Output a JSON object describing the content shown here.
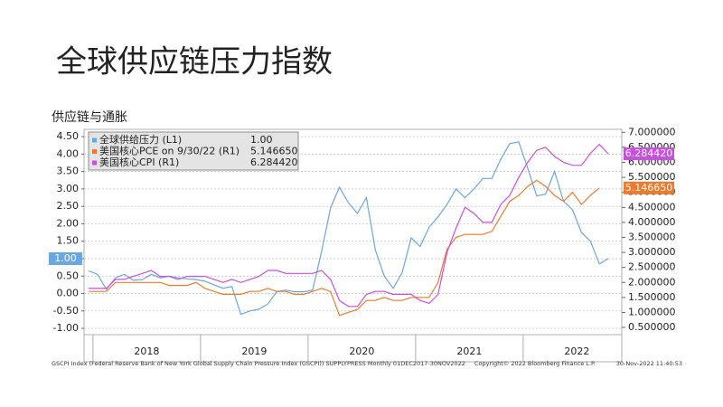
{
  "slide_title": "全球供应链压力指数",
  "chart_data": {
    "type": "line",
    "title": "供应链与通胀",
    "categories": [
      null,
      null,
      null,
      null,
      null,
      null,
      "2018",
      null,
      null,
      null,
      null,
      null,
      null,
      null,
      null,
      null,
      null,
      null,
      "2019",
      null,
      null,
      null,
      null,
      null,
      null,
      null,
      null,
      null,
      null,
      null,
      "2020",
      null,
      null,
      null,
      null,
      null,
      null,
      null,
      null,
      null,
      null,
      null,
      "2021",
      null,
      null,
      null,
      null,
      null,
      null,
      null,
      null,
      null,
      null,
      null,
      "2022",
      null,
      null,
      null,
      null,
      null
    ],
    "series": [
      {
        "name": "全球供给压力 (L1)",
        "color": "#6aa6e0",
        "axis": "y",
        "values": [
          0.65,
          0.55,
          0.12,
          0.45,
          0.55,
          0.38,
          0.4,
          0.55,
          0.45,
          0.5,
          0.45,
          0.42,
          0.4,
          0.35,
          0.25,
          0.15,
          0.2,
          -0.6,
          -0.5,
          -0.45,
          -0.3,
          0.05,
          0.1,
          0.05,
          0.05,
          0.1,
          1.2,
          2.45,
          3.05,
          2.6,
          2.3,
          2.75,
          1.25,
          0.5,
          0.15,
          0.6,
          1.6,
          1.35,
          1.9,
          2.2,
          2.55,
          3.0,
          2.75,
          3.0,
          3.3,
          3.3,
          3.85,
          4.3,
          4.35,
          3.6,
          2.8,
          2.85,
          3.5,
          2.65,
          2.4,
          1.75,
          1.5,
          0.85,
          1.0,
          null
        ],
        "value_labels": [
          null,
          null,
          null,
          null,
          null,
          null,
          null,
          null,
          null,
          null,
          null,
          null,
          null,
          null,
          null,
          null,
          null,
          null,
          null,
          null,
          null,
          null,
          null,
          null,
          null,
          null,
          null,
          null,
          null,
          null,
          null,
          null,
          null,
          null,
          null,
          null,
          null,
          null,
          null,
          null,
          null,
          null,
          null,
          null,
          null,
          null,
          null,
          null,
          null,
          null,
          null,
          null,
          null,
          null,
          null,
          null,
          null,
          null,
          "1.00",
          null
        ]
      },
      {
        "name": "美国核心PCE on 9/30/22 (R1)",
        "color": "#f07a2c",
        "axis": "y2",
        "values": [
          1.7,
          1.7,
          1.7,
          2.0,
          2.0,
          2.0,
          2.0,
          2.0,
          2.0,
          1.9,
          1.9,
          1.9,
          2.0,
          1.8,
          1.7,
          1.6,
          1.6,
          1.6,
          1.7,
          1.7,
          1.8,
          1.7,
          1.7,
          1.6,
          1.6,
          1.7,
          1.8,
          1.7,
          0.9,
          1.0,
          1.1,
          1.4,
          1.4,
          1.5,
          1.4,
          1.4,
          1.5,
          1.5,
          1.5,
          2.0,
          3.1,
          3.5,
          3.6,
          3.6,
          3.6,
          3.7,
          4.2,
          4.7,
          4.9,
          5.2,
          5.4,
          5.2,
          4.9,
          4.7,
          5.0,
          4.6,
          4.9,
          5.14665,
          null,
          null
        ],
        "value_labels": [
          null,
          null,
          null,
          null,
          null,
          null,
          null,
          null,
          null,
          null,
          null,
          null,
          null,
          null,
          null,
          null,
          null,
          null,
          null,
          null,
          null,
          null,
          null,
          null,
          null,
          null,
          null,
          null,
          null,
          null,
          null,
          null,
          null,
          null,
          null,
          null,
          null,
          null,
          null,
          null,
          null,
          null,
          null,
          null,
          null,
          null,
          null,
          null,
          null,
          null,
          null,
          null,
          null,
          null,
          null,
          null,
          null,
          "5.146650",
          null,
          null
        ]
      },
      {
        "name": "美国核心CPI (R1)",
        "color": "#c94fe0",
        "axis": "y2",
        "values": [
          1.8,
          1.8,
          1.8,
          2.1,
          2.1,
          2.2,
          2.3,
          2.4,
          2.2,
          2.2,
          2.1,
          2.2,
          2.2,
          2.2,
          2.1,
          2.0,
          2.1,
          2.0,
          2.1,
          2.2,
          2.4,
          2.4,
          2.3,
          2.3,
          2.3,
          2.3,
          2.4,
          2.1,
          1.4,
          1.2,
          1.2,
          1.6,
          1.7,
          1.7,
          1.6,
          1.6,
          1.6,
          1.4,
          1.3,
          1.6,
          3.0,
          3.8,
          4.5,
          4.3,
          4.0,
          4.0,
          4.6,
          4.9,
          5.5,
          6.0,
          6.4,
          6.5,
          6.2,
          6.0,
          5.9,
          5.9,
          6.3,
          6.6,
          6.28442,
          null
        ],
        "value_labels": [
          null,
          null,
          null,
          null,
          null,
          null,
          null,
          null,
          null,
          null,
          null,
          null,
          null,
          null,
          null,
          null,
          null,
          null,
          null,
          null,
          null,
          null,
          null,
          null,
          null,
          null,
          null,
          null,
          null,
          null,
          null,
          null,
          null,
          null,
          null,
          null,
          null,
          null,
          null,
          null,
          null,
          null,
          null,
          null,
          null,
          null,
          null,
          null,
          null,
          null,
          null,
          null,
          null,
          null,
          null,
          null,
          null,
          null,
          "6.284420",
          null
        ]
      }
    ],
    "ylim": [
      -1.18,
      4.71
    ],
    "yticks": [
      {
        "value": -1,
        "label": "-1.00"
      },
      {
        "value": -0.5,
        "label": "-0.50"
      },
      {
        "value": 0,
        "label": "0.00"
      },
      {
        "value": 0.5,
        "label": "0.50"
      },
      {
        "value": 1,
        "label": "1.00"
      },
      {
        "value": 1.5,
        "label": "1.50"
      },
      {
        "value": 2,
        "label": "2.00"
      },
      {
        "value": 2.5,
        "label": "2.50"
      },
      {
        "value": 3,
        "label": "3.00"
      },
      {
        "value": 3.5,
        "label": "3.50"
      },
      {
        "value": 4,
        "label": "4.00"
      },
      {
        "value": 4.5,
        "label": "4.50"
      }
    ],
    "y2lim": [
      0.26,
      7.1
    ],
    "y2ticks": [
      {
        "value": 0.5,
        "label": "0.500000"
      },
      {
        "value": 1,
        "label": "1.000000"
      },
      {
        "value": 1.5,
        "label": "1.500000"
      },
      {
        "value": 2,
        "label": "2.000000"
      },
      {
        "value": 2.5,
        "label": "2.500000"
      },
      {
        "value": 3,
        "label": "3.000000"
      },
      {
        "value": 3.5,
        "label": "3.500000"
      },
      {
        "value": 4,
        "label": "4.000000"
      },
      {
        "value": 4.5,
        "label": "4.500000"
      },
      {
        "value": 5,
        "label": "5.000000"
      },
      {
        "value": 5.5,
        "label": "5.500000"
      },
      {
        "value": 6,
        "label": "6.000000"
      },
      {
        "value": 6.5,
        "label": "6.500000"
      },
      {
        "value": 7,
        "label": "7.000000"
      }
    ],
    "grid": true,
    "legend": "top-left",
    "source": "GSCPI Index (Federal Reserve Bank of New York Global Supply Chain Pressure Index (GSCPI)) SUPPLYPRESS  Monthly 01DEC2017-30NOV2022",
    "copyright": "Copyright© 2022 Bloomberg Finance L.P.",
    "timestamp": "30-Nov-2022 11:40:53"
  }
}
